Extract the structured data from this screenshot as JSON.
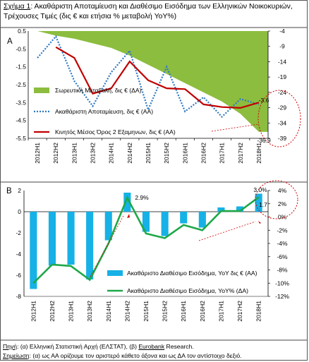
{
  "title": {
    "label": "Σχήμα 1",
    "text": ": Ακαθάριστη Αποταμίευση και Διαθέσιμο Εισόδημα των Ελληνικών Νοικοκυριών, Τρέχουσες Τιμές (δις € και ετήσια % μεταβολή YoY%)"
  },
  "footer": {
    "source_label": "Πηγή",
    "source_text_a": ": (α) Ελληνική Στατιστική Αρχή (ΕΛΣΤΑΤ), (β) ",
    "source_link": "Eurobank",
    "source_text_b": " Research.",
    "note_label": "Σημείωση",
    "note_text": ": (α) ως ΑΑ ορίζουμε τον αριστερό κάθετο άξονα και ως ΔΑ τον αντίστοιχο δεξιό."
  },
  "colors": {
    "area": "#8cbd3f",
    "saving_line": "#2e79c4",
    "moving_avg": "#c00000",
    "income_bar": "#16b1e6",
    "income_yoy": "#1fa84a",
    "annotation": "#d00000"
  },
  "chart_data": [
    {
      "panel": "A",
      "type": "line",
      "categories": [
        "2012H1",
        "2012H2",
        "2013H1",
        "2013H2",
        "2014H1",
        "2014H2",
        "2015H1",
        "2015H2",
        "2016H1",
        "2016H2",
        "2017H1",
        "2017H2",
        "2018H1"
      ],
      "left_axis": {
        "min": -5.5,
        "max": 0.5,
        "ticks": [
          "0.5",
          "-0.5",
          "-1.5",
          "-2.5",
          "-3.5",
          "-4.5",
          "-5.5"
        ]
      },
      "right_axis": {
        "min": -39,
        "max": -4,
        "ticks": [
          "-4",
          "-9",
          "-14",
          "-19",
          "-24",
          "-29",
          "-34",
          "-39"
        ]
      },
      "series": [
        {
          "name": "Σωρευτική Μεταβολή, δις € (ΔΑ)",
          "type": "area",
          "axis": "right",
          "values": [
            -4,
            -5.5,
            -6.5,
            -8,
            -9.5,
            -12,
            -15,
            -18,
            -21,
            -24,
            -27,
            -31,
            -36.9
          ]
        },
        {
          "name": "Ακαθάριστη Αποταμίευση, δις € (ΑΑ)",
          "type": "line",
          "style": "dotted",
          "axis": "left",
          "values": [
            -1.0,
            0.2,
            -2.3,
            -3.7,
            -1.8,
            -0.6,
            -3.9,
            -1.5,
            -4.0,
            -3.2,
            -4.3,
            -3.3,
            -3.6
          ]
        },
        {
          "name": "Κινητός Μέσος Όρος 2 Εξαμηνων, δις € (ΑΑ)",
          "type": "line",
          "axis": "left",
          "values": [
            null,
            -0.4,
            -1.0,
            -3.0,
            -2.7,
            -1.2,
            -2.25,
            -2.7,
            -2.75,
            -3.6,
            -3.75,
            -3.8,
            -3.5
          ]
        }
      ],
      "annotations": [
        "-3.6",
        "-36.9"
      ]
    },
    {
      "panel": "B",
      "type": "bar",
      "categories": [
        "2012H1",
        "2012H2",
        "2013H1",
        "2013H2",
        "2014H1",
        "2014H2",
        "2015H1",
        "2015H2",
        "2016H1",
        "2016H2",
        "2017H1",
        "2017H2",
        "2018H1"
      ],
      "left_axis": {
        "min": -8,
        "max": 2,
        "ticks": [
          "2",
          "0",
          "-2",
          "-4",
          "-6",
          "-8"
        ]
      },
      "right_axis": {
        "min": -12,
        "max": 4,
        "ticks": [
          "4%",
          "2%",
          "0%",
          "-2%",
          "-4%",
          "-6%",
          "-8%",
          "-10%",
          "-12%"
        ]
      },
      "series": [
        {
          "name": "Ακαθάριστο Διαθέσιμο Εισόδημα, YoY δις € (ΑΑ)",
          "type": "bar",
          "axis": "left",
          "values": [
            -7.3,
            -5.1,
            -5.0,
            -6.4,
            -2.7,
            1.8,
            -1.9,
            -2.3,
            -1.1,
            -1.5,
            0.4,
            0.5,
            1.7
          ]
        },
        {
          "name": "Ακαθάριστο Διαθέσιμο Εισόδημα, YoY% (ΔΑ)",
          "type": "line",
          "axis": "right",
          "values": [
            -10.0,
            -7.2,
            -7.4,
            -9.5,
            -4.0,
            2.9,
            -2.5,
            -3.2,
            -1.2,
            -2.0,
            0.9,
            0.9,
            3.0
          ]
        }
      ],
      "annotations": [
        "2.9%",
        "3.0%",
        "1.7"
      ]
    }
  ]
}
